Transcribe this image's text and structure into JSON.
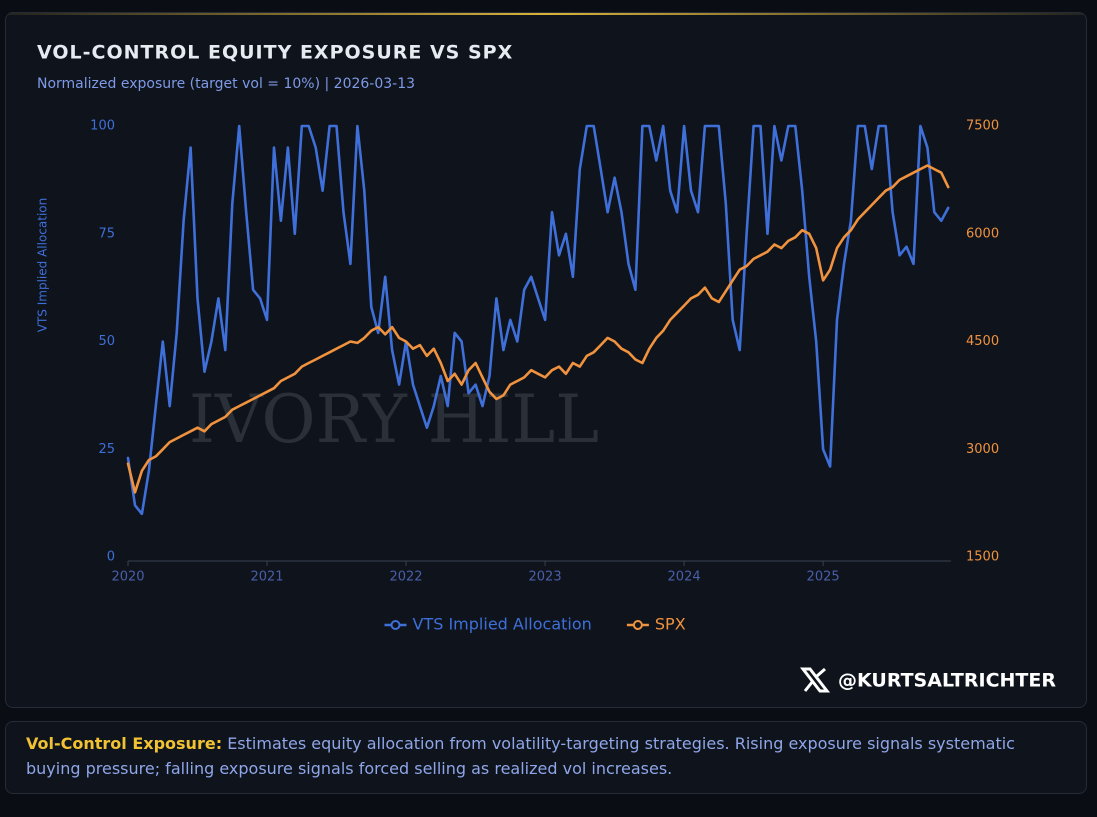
{
  "chart_data": {
    "type": "line",
    "title": "VOL-CONTROL EQUITY EXPOSURE VS SPX",
    "subtitle": "Normalized exposure (target vol = 10%) | 2026-03-13",
    "y_label": "VTS Implied Allocation",
    "watermark": "IVORY HILL",
    "handle": "@KURTSALTRICHTER",
    "note_label": "Vol-Control Exposure:",
    "note_text": "Estimates equity allocation from volatility-targeting strategies. Rising exposure signals systematic buying pressure; falling exposure signals forced selling as realized vol increases.",
    "xlim": [
      2020,
      2025.92
    ],
    "xticks": [
      2020,
      2021,
      2022,
      2023,
      2024,
      2025
    ],
    "ylim": [
      0,
      100
    ],
    "yticks": [
      0,
      25,
      50,
      75,
      100
    ],
    "y2lim": [
      1500,
      7500
    ],
    "y2ticks": [
      1500,
      3000,
      4500,
      6000,
      7500
    ],
    "grid": false,
    "legend": "bottom",
    "x": [
      2020.0,
      2020.05,
      2020.1,
      2020.15,
      2020.2,
      2020.25,
      2020.3,
      2020.35,
      2020.4,
      2020.45,
      2020.5,
      2020.55,
      2020.6,
      2020.65,
      2020.7,
      2020.75,
      2020.8,
      2020.85,
      2020.9,
      2020.95,
      2021.0,
      2021.05,
      2021.1,
      2021.15,
      2021.2,
      2021.25,
      2021.3,
      2021.35,
      2021.4,
      2021.45,
      2021.5,
      2021.55,
      2021.6,
      2021.65,
      2021.7,
      2021.75,
      2021.8,
      2021.85,
      2021.9,
      2021.95,
      2022.0,
      2022.05,
      2022.1,
      2022.15,
      2022.2,
      2022.25,
      2022.3,
      2022.35,
      2022.4,
      2022.45,
      2022.5,
      2022.55,
      2022.6,
      2022.65,
      2022.7,
      2022.75,
      2022.8,
      2022.85,
      2022.9,
      2022.95,
      2023.0,
      2023.05,
      2023.1,
      2023.15,
      2023.2,
      2023.25,
      2023.3,
      2023.35,
      2023.4,
      2023.45,
      2023.5,
      2023.55,
      2023.6,
      2023.65,
      2023.7,
      2023.75,
      2023.8,
      2023.85,
      2023.9,
      2023.95,
      2024.0,
      2024.05,
      2024.1,
      2024.15,
      2024.2,
      2024.25,
      2024.3,
      2024.35,
      2024.4,
      2024.45,
      2024.5,
      2024.55,
      2024.6,
      2024.65,
      2024.7,
      2024.75,
      2024.8,
      2024.85,
      2024.9,
      2024.95,
      2025.0,
      2025.05,
      2025.1,
      2025.15,
      2025.2,
      2025.25,
      2025.3,
      2025.35,
      2025.4,
      2025.45,
      2025.5,
      2025.55,
      2025.6,
      2025.65,
      2025.7,
      2025.75,
      2025.8,
      2025.85,
      2025.9
    ],
    "series": [
      {
        "name": "VTS Implied Allocation",
        "color": "#3f6fd8",
        "axis": "y",
        "values": [
          23,
          12,
          10,
          20,
          35,
          50,
          35,
          52,
          78,
          95,
          60,
          43,
          50,
          60,
          48,
          82,
          100,
          80,
          62,
          60,
          55,
          95,
          78,
          95,
          75,
          100,
          100,
          95,
          85,
          100,
          100,
          80,
          68,
          100,
          85,
          58,
          52,
          65,
          48,
          40,
          50,
          40,
          35,
          30,
          35,
          42,
          35,
          52,
          50,
          38,
          40,
          35,
          42,
          60,
          48,
          55,
          50,
          62,
          65,
          60,
          55,
          80,
          70,
          75,
          65,
          90,
          100,
          100,
          90,
          80,
          88,
          80,
          68,
          62,
          100,
          100,
          92,
          100,
          85,
          80,
          100,
          85,
          80,
          100,
          100,
          100,
          82,
          55,
          48,
          75,
          100,
          100,
          75,
          100,
          92,
          100,
          100,
          85,
          65,
          50,
          25,
          21,
          55,
          68,
          78,
          100,
          100,
          90,
          100,
          100,
          80,
          70,
          72,
          68,
          100,
          95,
          80,
          78,
          81
        ]
      },
      {
        "name": "SPX",
        "color": "#f0923e",
        "axis": "y2",
        "values": [
          2800,
          2400,
          2700,
          2850,
          2900,
          3000,
          3100,
          3150,
          3200,
          3250,
          3300,
          3250,
          3350,
          3400,
          3450,
          3550,
          3600,
          3650,
          3700,
          3750,
          3800,
          3850,
          3950,
          4000,
          4050,
          4150,
          4200,
          4250,
          4300,
          4350,
          4400,
          4450,
          4500,
          4480,
          4550,
          4650,
          4700,
          4600,
          4700,
          4550,
          4500,
          4400,
          4450,
          4300,
          4400,
          4200,
          3950,
          4050,
          3900,
          4100,
          4200,
          4000,
          3800,
          3700,
          3750,
          3900,
          3950,
          4000,
          4100,
          4050,
          4000,
          4100,
          4150,
          4050,
          4200,
          4150,
          4300,
          4350,
          4450,
          4550,
          4500,
          4400,
          4350,
          4250,
          4200,
          4400,
          4550,
          4650,
          4800,
          4900,
          5000,
          5100,
          5150,
          5250,
          5100,
          5050,
          5200,
          5350,
          5500,
          5550,
          5650,
          5700,
          5750,
          5850,
          5800,
          5900,
          5950,
          6050,
          6000,
          5800,
          5350,
          5500,
          5800,
          5950,
          6050,
          6200,
          6300,
          6400,
          6500,
          6600,
          6650,
          6750,
          6800,
          6850,
          6900,
          6950,
          6900,
          6850,
          6650
        ]
      }
    ]
  }
}
